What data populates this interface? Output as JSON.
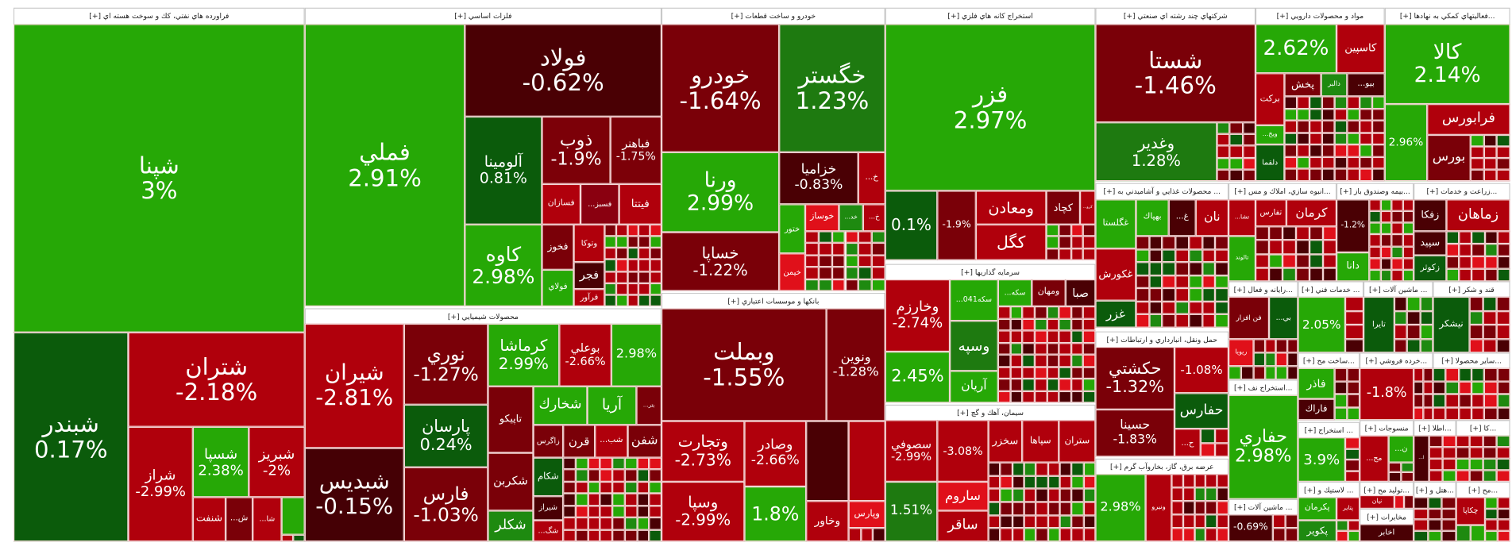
{
  "sectors": [
    {
      "title": "فراورده هاي نفتي، كك و سوخت هسته اي [+]",
      "tiles": [
        {
          "label": "شپنا",
          "change": "3%",
          "color": "#26a806"
        },
        {
          "label": "شبندر",
          "change": "0.17%",
          "color": "#0b5b0b"
        },
        {
          "label": "شتران",
          "change": "-2.18%",
          "color": "#b0000c"
        },
        {
          "label": "شراز",
          "change": "-2.99%",
          "color": "#b0000c"
        },
        {
          "label": "شسپا",
          "change": "2.38%",
          "color": "#26a806"
        },
        {
          "label": "شبريز",
          "change": "-2%",
          "color": "#b0000c"
        },
        {
          "label": "شنفت",
          "change": "",
          "color": "#b0000c"
        },
        {
          "label": "...ش",
          "change": "",
          "color": "#7a0008"
        },
        {
          "label": "...شا",
          "change": "",
          "color": "#b0000c"
        },
        {
          "label": "",
          "change": "",
          "color": "#26a806"
        }
      ]
    },
    {
      "title": "فلزات اساسي [+]",
      "tiles": [
        {
          "label": "فملي",
          "change": "2.91%",
          "color": "#26a806"
        },
        {
          "label": "فولاد",
          "change": "-0.62%",
          "color": "#4a0004"
        },
        {
          "label": "آلومينا",
          "change": "0.81%",
          "color": "#0b5b0b"
        },
        {
          "label": "كاوه",
          "change": "2.98%",
          "color": "#26a806"
        },
        {
          "label": "ذوب",
          "change": "-1.9%",
          "color": "#7c0008"
        },
        {
          "label": "فباهنر",
          "change": "-1.75%",
          "color": "#7c0008"
        },
        {
          "label": "فسازان",
          "change": "",
          "color": "#b0000c"
        },
        {
          "label": "...فسبز",
          "change": "",
          "color": "#8a0010"
        },
        {
          "label": "فيتتا",
          "change": "",
          "color": "#b0000c"
        },
        {
          "label": "فخوز",
          "change": "",
          "color": "#7a0008"
        },
        {
          "label": "فولاي",
          "change": "",
          "color": "#26a806"
        },
        {
          "label": "وتوكا",
          "change": "",
          "color": "#b0000c"
        },
        {
          "label": "فجر",
          "change": "",
          "color": "#4a0004"
        },
        {
          "label": "فرآور",
          "change": "",
          "color": "#b0000c"
        }
      ]
    },
    {
      "title": "محصولات شيميايي [+]",
      "tiles": [
        {
          "label": "شيران",
          "change": "-2.81%",
          "color": "#b0000c"
        },
        {
          "label": "شبديس",
          "change": "-0.15%",
          "color": "#450005"
        },
        {
          "label": "نوري",
          "change": "-1.27%",
          "color": "#7a0008"
        },
        {
          "label": "پارسان",
          "change": "0.24%",
          "color": "#0b5b0b"
        },
        {
          "label": "فارس",
          "change": "-1.03%",
          "color": "#7a0008"
        },
        {
          "label": "كرماشا",
          "change": "2.99%",
          "color": "#26a806"
        },
        {
          "label": "بوعلي",
          "change": "-2.66%",
          "color": "#b0000c"
        },
        {
          "label": "",
          "change": "2.98%",
          "color": "#26a806"
        },
        {
          "label": "تاپيكو",
          "change": "",
          "color": "#7a0008"
        },
        {
          "label": "شكربن",
          "change": "",
          "color": "#7a0008"
        },
        {
          "label": "شكلر",
          "change": "",
          "color": "#1e8a10"
        },
        {
          "label": "شخارك",
          "change": "",
          "color": "#26a806"
        },
        {
          "label": "آريا",
          "change": "",
          "color": "#26a806"
        },
        {
          "label": "...بتر",
          "change": "",
          "color": "#7a0008"
        },
        {
          "label": "زاگرس",
          "change": "",
          "color": "#7a0008"
        },
        {
          "label": "قرن",
          "change": "",
          "color": "#7a0008"
        },
        {
          "label": "...شب",
          "change": "",
          "color": "#b0000c"
        },
        {
          "label": "شفن",
          "change": "",
          "color": "#7a0008"
        },
        {
          "label": "شكام",
          "change": "",
          "color": "#0b5b0b"
        },
        {
          "label": "شيراز",
          "change": "",
          "color": "#4a0004"
        },
        {
          "label": "...شگ",
          "change": "",
          "color": "#b0000c"
        }
      ]
    },
    {
      "title": "خودرو و ساخت قطعات [+]",
      "tiles": [
        {
          "label": "خودرو",
          "change": "-1.64%",
          "color": "#7a0008"
        },
        {
          "label": "خگستر",
          "change": "1.23%",
          "color": "#1e7a10"
        },
        {
          "label": "ورنا",
          "change": "2.99%",
          "color": "#26a806"
        },
        {
          "label": "خساپا",
          "change": "-1.22%",
          "color": "#7a0008"
        },
        {
          "label": "خزاميا",
          "change": "-0.83%",
          "color": "#4a0004"
        },
        {
          "label": "...خ",
          "change": "",
          "color": "#b0000c"
        },
        {
          "label": "ختور",
          "change": "",
          "color": "#26a806"
        },
        {
          "label": "خوساز",
          "change": "",
          "color": "#e0101a"
        },
        {
          "label": "...خد",
          "change": "",
          "color": "#1e8a10"
        },
        {
          "label": "...خ",
          "change": "",
          "color": "#b0000c"
        },
        {
          "label": "خيمن",
          "change": "",
          "color": "#e0101a"
        }
      ]
    },
    {
      "title": "بانكها و موسسات اعتباري [+]",
      "tiles": [
        {
          "label": "وبملت",
          "change": "-1.55%",
          "color": "#7a0008"
        },
        {
          "label": "ونوين",
          "change": "-1.28%",
          "color": "#7a0008"
        },
        {
          "label": "وتجارت",
          "change": "-2.73%",
          "color": "#b0000c"
        },
        {
          "label": "وسپا",
          "change": "-2.99%",
          "color": "#b0000c"
        },
        {
          "label": "وصادر",
          "change": "-2.66%",
          "color": "#b0000c"
        },
        {
          "label": "",
          "change": "1.8%",
          "color": "#26a806"
        },
        {
          "label": "",
          "change": "",
          "color": "#4a0004"
        },
        {
          "label": "",
          "change": "",
          "color": "#b0000c"
        },
        {
          "label": "وخاور",
          "change": "",
          "color": "#b0000c"
        },
        {
          "label": "وپارس",
          "change": "",
          "color": "#e0101a"
        }
      ]
    },
    {
      "title": "استخراج كانه هاي فلزي [+]",
      "tiles": [
        {
          "label": "فزر",
          "change": "2.97%",
          "color": "#26a806"
        },
        {
          "label": "",
          "change": "0.1%",
          "color": "#0b5b0b"
        },
        {
          "label": "",
          "change": "-1.9%",
          "color": "#7a0008"
        },
        {
          "label": "ومعادن",
          "change": "",
          "color": "#b0000c"
        },
        {
          "label": "كگل",
          "change": "",
          "color": "#b0000c"
        },
        {
          "label": "كچاد",
          "change": "",
          "color": "#7a0008"
        },
        {
          "label": "...كرو",
          "change": "",
          "color": "#b0000c"
        }
      ]
    },
    {
      "title": "سرمايه گذاريها [+]",
      "tiles": [
        {
          "label": "وخارزم",
          "change": "-2.74%",
          "color": "#b0000c"
        },
        {
          "label": "",
          "change": "2.45%",
          "color": "#26a806"
        },
        {
          "label": "...041سكه",
          "change": "",
          "color": "#26a806"
        },
        {
          "label": "وسپه",
          "change": "",
          "color": "#1e7a10"
        },
        {
          "label": "آريان",
          "change": "",
          "color": "#26a806"
        },
        {
          "label": "...سكه",
          "change": "",
          "color": "#26a806"
        },
        {
          "label": "ومهان",
          "change": "",
          "color": "#7a0008"
        },
        {
          "label": "صبا",
          "change": "",
          "color": "#4a0004"
        }
      ]
    },
    {
      "title": "سيمان، آهك و گچ [+]",
      "tiles": [
        {
          "label": "سصوفي",
          "change": "-2.99%",
          "color": "#b0000c"
        },
        {
          "label": "",
          "change": "1.51%",
          "color": "#1e7a10"
        },
        {
          "label": "",
          "change": "-3.08%",
          "color": "#b0000c"
        },
        {
          "label": "ساروم",
          "change": "",
          "color": "#e0101a"
        },
        {
          "label": "ساقر",
          "change": "",
          "color": "#b0000c"
        },
        {
          "label": "سخزر",
          "change": "",
          "color": "#b0000c"
        },
        {
          "label": "سپاها",
          "change": "",
          "color": "#b0000c"
        },
        {
          "label": "ستران",
          "change": "",
          "color": "#b0000c"
        }
      ]
    },
    {
      "title": "شركتهاي چند رشته اي صنعتي [+]",
      "tiles": [
        {
          "label": "شستا",
          "change": "-1.46%",
          "color": "#7a0008"
        },
        {
          "label": "وغدير",
          "change": "1.28%",
          "color": "#1e7a10"
        }
      ]
    },
    {
      "title": "... محصولات غذايي و آشاميدني به [+]",
      "tiles": [
        {
          "label": "غگلستا",
          "change": "",
          "color": "#26a806"
        },
        {
          "label": "غكورش",
          "change": "",
          "color": "#b0000c"
        },
        {
          "label": "غزر",
          "change": "",
          "color": "#0b5b0b"
        },
        {
          "label": "بهپاك",
          "change": "",
          "color": "#26a806"
        },
        {
          "label": "...غ",
          "change": "",
          "color": "#4a0004"
        },
        {
          "label": "نان",
          "change": "",
          "color": "#b0000c"
        }
      ]
    },
    {
      "title": "حمل ونقل، انبارداري و ارتباطات [+]",
      "tiles": [
        {
          "label": "حكشتي",
          "change": "-1.32%",
          "color": "#7a0008"
        },
        {
          "label": "حسينا",
          "change": "-1.83%",
          "color": "#7a0008"
        },
        {
          "label": "",
          "change": "-1.08%",
          "color": "#b0000c"
        },
        {
          "label": "حفارس",
          "change": "",
          "color": "#0b5b0b"
        },
        {
          "label": "...ح",
          "change": "",
          "color": "#b0000c"
        }
      ]
    },
    {
      "title": "عرضه برق، گاز، بخاروآب گرم [+]",
      "tiles": [
        {
          "label": "",
          "change": "2.98%",
          "color": "#26a806"
        },
        {
          "label": "ونيرو",
          "change": "",
          "color": "#b0000c"
        }
      ]
    },
    {
      "title": "مواد و محصولات دارويي [+]",
      "tiles": [
        {
          "label": "",
          "change": "2.62%",
          "color": "#26a806"
        },
        {
          "label": "كاسپين",
          "change": "",
          "color": "#b0000c"
        },
        {
          "label": "بركت",
          "change": "",
          "color": "#b0000c"
        },
        {
          "label": "پخش",
          "change": "",
          "color": "#7a0008"
        },
        {
          "label": "دالبر",
          "change": "",
          "color": "#1e8a10"
        },
        {
          "label": "...بيو",
          "change": "",
          "color": "#4a0004"
        },
        {
          "label": "...ويخ",
          "change": "",
          "color": "#26a806"
        },
        {
          "label": "دلقما",
          "change": "",
          "color": "#0b5b0b"
        }
      ]
    },
    {
      "title": "...فعاليتهاي كمكي به نهادها [+]",
      "tiles": [
        {
          "label": "كالا",
          "change": "2.14%",
          "color": "#26a806"
        },
        {
          "label": "",
          "change": "2.96%",
          "color": "#26a806"
        },
        {
          "label": "فرابورس",
          "change": "",
          "color": "#b0000c"
        },
        {
          "label": "بورس",
          "change": "",
          "color": "#7a0008"
        }
      ]
    },
    {
      "title": "...انبوه سازي، املاك و مس [+]",
      "tiles": [
        {
          "label": "...تشا",
          "change": "",
          "color": "#b0000c"
        },
        {
          "label": "تفارس",
          "change": "",
          "color": "#b0000c"
        },
        {
          "label": "كرمان",
          "change": "",
          "color": "#b0000c"
        },
        {
          "label": "تالوند",
          "change": "",
          "color": "#26a806"
        }
      ]
    },
    {
      "title": "...بيمه وصندوق باز [+]",
      "tiles": [
        {
          "label": "",
          "change": "-1.2%",
          "color": "#4a0004"
        },
        {
          "label": "دانا",
          "change": "",
          "color": "#26a806"
        }
      ]
    },
    {
      "title": "...زراعت و خدمات [+]",
      "tiles": [
        {
          "label": "زفكا",
          "change": "",
          "color": "#4a0004"
        },
        {
          "label": "زماهان",
          "change": "",
          "color": "#b0000c"
        },
        {
          "label": "سپيد",
          "change": "",
          "color": "#4a0004"
        },
        {
          "label": "زكوثر",
          "change": "",
          "color": "#0b5b0b"
        }
      ]
    },
    {
      "title": "...رايانه و فعال [+]",
      "tiles": [
        {
          "label": "فن افزار",
          "change": "",
          "color": "#7a0008"
        },
        {
          "label": "...بي",
          "change": "",
          "color": "#0b5b0b"
        },
        {
          "label": "ريويا",
          "change": "",
          "color": "#e0101a"
        }
      ]
    },
    {
      "title": "... خدمات فني [+]",
      "tiles": [
        {
          "label": "",
          "change": "2.05%",
          "color": "#26a806"
        }
      ]
    },
    {
      "title": "... ماشين آلات [+]",
      "tiles": [
        {
          "label": "تايرا",
          "change": "",
          "color": "#0b5b0b"
        }
      ]
    },
    {
      "title": "قند و شكر [+]",
      "tiles": [
        {
          "label": "نيشكر",
          "change": "",
          "color": "#0b5b0b"
        }
      ]
    },
    {
      "title": "...استخراج نف [+]",
      "tiles": [
        {
          "label": "حفاري",
          "change": "2.98%",
          "color": "#26a806"
        }
      ]
    },
    {
      "title": "...ساخت مح [+]",
      "tiles": [
        {
          "label": "فاذر",
          "change": "",
          "color": "#26a806"
        },
        {
          "label": "فاراك",
          "change": "",
          "color": "#4a0004"
        }
      ]
    },
    {
      "title": "...خرده فروشي [+]",
      "tiles": [
        {
          "label": "",
          "change": "-1.8%",
          "color": "#b0000c"
        }
      ]
    },
    {
      "title": "...ساير محصولا [+]",
      "tiles": []
    },
    {
      "title": "... استخراج [+]",
      "tiles": [
        {
          "label": "",
          "change": "3.9%",
          "color": "#26a806"
        }
      ]
    },
    {
      "title": "منسوجات [+]",
      "tiles": [
        {
          "label": "...مح",
          "change": "",
          "color": "#b0000c"
        },
        {
          "label": "...ن",
          "change": "",
          "color": "#26a806"
        }
      ]
    },
    {
      "title": "...اطلا [+]",
      "tiles": [
        {
          "label": "...ا",
          "change": "",
          "color": "#4a0004"
        }
      ]
    },
    {
      "title": "...كا [+]",
      "tiles": []
    },
    {
      "title": "... ماشين آلات [+]",
      "tiles": [
        {
          "label": "",
          "change": "-0.69%",
          "color": "#4a0004"
        }
      ]
    },
    {
      "title": "... لاستيك و [+]",
      "tiles": [
        {
          "label": "پكرمان",
          "change": "",
          "color": "#26a806"
        },
        {
          "label": "پتاير",
          "change": "",
          "color": "#b0000c"
        },
        {
          "label": "پكوير",
          "change": "",
          "color": "#1e8a10"
        }
      ]
    },
    {
      "title": "...توليد مح [+]",
      "tiles": [
        {
          "label": "نيان",
          "change": "",
          "color": "#b0000c"
        }
      ]
    },
    {
      "title": "مخابرات [+]",
      "tiles": [
        {
          "label": "اخابر",
          "change": "",
          "color": "#4a0004"
        }
      ]
    },
    {
      "title": "...هتل و [+]",
      "tiles": []
    },
    {
      "title": "...مح [+]",
      "tiles": [
        {
          "label": "چكاپا",
          "change": "",
          "color": "#b0000c"
        }
      ]
    }
  ]
}
